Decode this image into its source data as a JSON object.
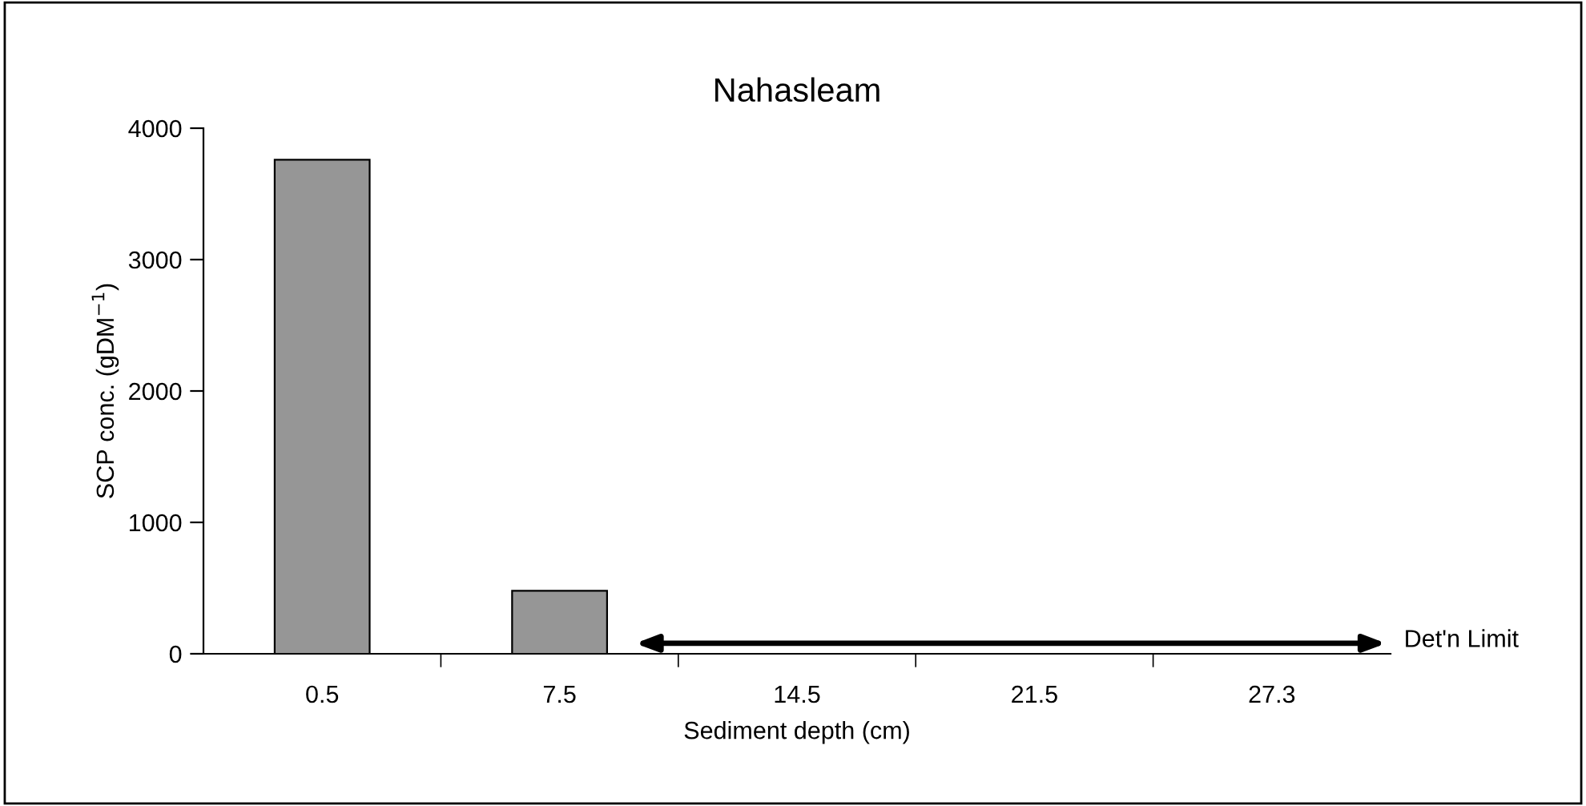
{
  "chart_data": {
    "type": "bar",
    "title": "Nahasleam",
    "xlabel": "Sediment depth (cm)",
    "ylabel": "SCP conc. (gDM$^{−1}$)",
    "categories": [
      "0.5",
      "7.5",
      "14.5",
      "21.5",
      "27.3"
    ],
    "values": [
      3760,
      480,
      null,
      null,
      null
    ],
    "color": "#969696",
    "ylim": [
      0,
      4000
    ],
    "yticks": [
      0,
      1000,
      2000,
      3000,
      4000
    ],
    "grid": false,
    "legend": false,
    "annotations": [
      "Det'n Limit"
    ]
  }
}
